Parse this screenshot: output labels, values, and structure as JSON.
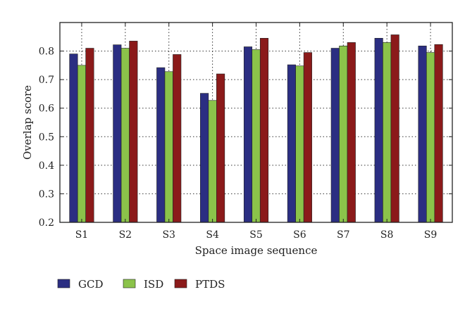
{
  "chart_data": {
    "type": "bar",
    "categories": [
      "S1",
      "S2",
      "S3",
      "S4",
      "S5",
      "S6",
      "S7",
      "S8",
      "S9"
    ],
    "series": [
      {
        "name": "GCD",
        "color": "#2b2e82",
        "values": [
          0.79,
          0.822,
          0.742,
          0.652,
          0.815,
          0.752,
          0.81,
          0.845,
          0.818
        ]
      },
      {
        "name": "ISD",
        "color": "#8bc34a",
        "values": [
          0.75,
          0.81,
          0.728,
          0.627,
          0.805,
          0.748,
          0.818,
          0.83,
          0.795
        ]
      },
      {
        "name": "PTDS",
        "color": "#8b1a1a",
        "values": [
          0.81,
          0.835,
          0.788,
          0.72,
          0.845,
          0.795,
          0.83,
          0.857,
          0.823
        ]
      }
    ],
    "xlabel": "Space image sequence",
    "ylabel": "Overlap score",
    "ylim": [
      0.2,
      0.9
    ],
    "yticks": [
      "0.2",
      "0.3",
      "0.4",
      "0.5",
      "0.6",
      "0.7",
      "0.8"
    ],
    "ytick_values": [
      0.2,
      0.3,
      0.4,
      0.5,
      0.6,
      0.7,
      0.8
    ],
    "grid": "dotted",
    "legend_position": "bottom-left"
  }
}
